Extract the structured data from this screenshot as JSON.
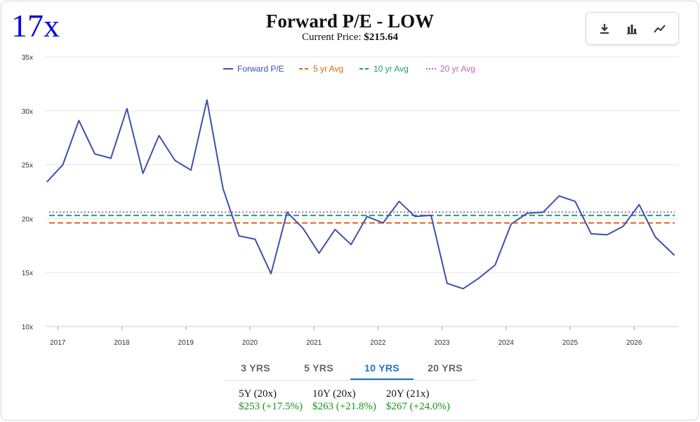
{
  "header": {
    "big_multiple": "17x",
    "title": "Forward P/E - LOW",
    "price_label": "Current Price:",
    "price_value": "$215.64"
  },
  "toolbar": {
    "items": [
      {
        "name": "download-icon"
      },
      {
        "name": "bar-chart-icon"
      },
      {
        "name": "line-chart-icon"
      }
    ]
  },
  "tabs": {
    "items": [
      {
        "label": "3 YRS",
        "active": false
      },
      {
        "label": "5 YRS",
        "active": false
      },
      {
        "label": "10 YRS",
        "active": true
      },
      {
        "label": "20 YRS",
        "active": false
      }
    ]
  },
  "targets": [
    {
      "label": "5Y (20x)",
      "value": "$253 (+17.5%)"
    },
    {
      "label": "10Y (20x)",
      "value": "$263 (+21.8%)"
    },
    {
      "label": "20Y (21x)",
      "value": "$267 (+24.0%)"
    }
  ],
  "chart_data": {
    "type": "line",
    "title": "Forward P/E - LOW",
    "ylim": [
      10,
      35
    ],
    "xlim": [
      2016.8,
      2026.7
    ],
    "y_ticks": [
      10,
      15,
      20,
      25,
      30,
      35
    ],
    "y_tick_labels": [
      "10x",
      "15x",
      "20x",
      "25x",
      "30x",
      "35x"
    ],
    "x_ticks": [
      2017,
      2018,
      2019,
      2020,
      2021,
      2022,
      2023,
      2024,
      2025,
      2026
    ],
    "x_tick_labels": [
      "2017",
      "2018",
      "2019",
      "2020",
      "2021",
      "2022",
      "2023",
      "2024",
      "2025",
      "2026"
    ],
    "grid": "horizontal",
    "legend_position": "top-center",
    "series": [
      {
        "name": "Forward P/E",
        "color": "#3f4fae",
        "style": "solid",
        "x": [
          2016.83,
          2017.08,
          2017.33,
          2017.58,
          2017.83,
          2018.08,
          2018.33,
          2018.58,
          2018.83,
          2019.08,
          2019.33,
          2019.58,
          2019.83,
          2020.08,
          2020.33,
          2020.58,
          2020.83,
          2021.08,
          2021.33,
          2021.58,
          2021.83,
          2022.08,
          2022.33,
          2022.58,
          2022.83,
          2023.08,
          2023.33,
          2023.58,
          2023.83,
          2024.08,
          2024.33,
          2024.58,
          2024.83,
          2025.08,
          2025.33,
          2025.58,
          2025.83,
          2026.08,
          2026.33,
          2026.63
        ],
        "values": [
          23.4,
          25.0,
          29.1,
          26.0,
          25.6,
          30.2,
          24.2,
          27.7,
          25.4,
          24.5,
          31.0,
          22.8,
          18.4,
          18.1,
          14.9,
          20.6,
          19.1,
          16.8,
          19.0,
          17.6,
          20.2,
          19.6,
          21.6,
          20.2,
          20.3,
          14.0,
          13.5,
          14.5,
          15.7,
          19.5,
          20.5,
          20.6,
          22.1,
          21.6,
          18.6,
          18.5,
          19.3,
          21.3,
          18.3,
          16.6
        ]
      },
      {
        "name": "5 yr Avg",
        "color": "#e0660f",
        "style": "dashed",
        "values": [
          19.6
        ]
      },
      {
        "name": "10 yr Avg",
        "color": "#1a9e6e",
        "style": "dashed",
        "values": [
          20.3
        ]
      },
      {
        "name": "20 yr Avg",
        "color": "#c065b4",
        "style": "dotted",
        "values": [
          20.6
        ]
      }
    ]
  }
}
